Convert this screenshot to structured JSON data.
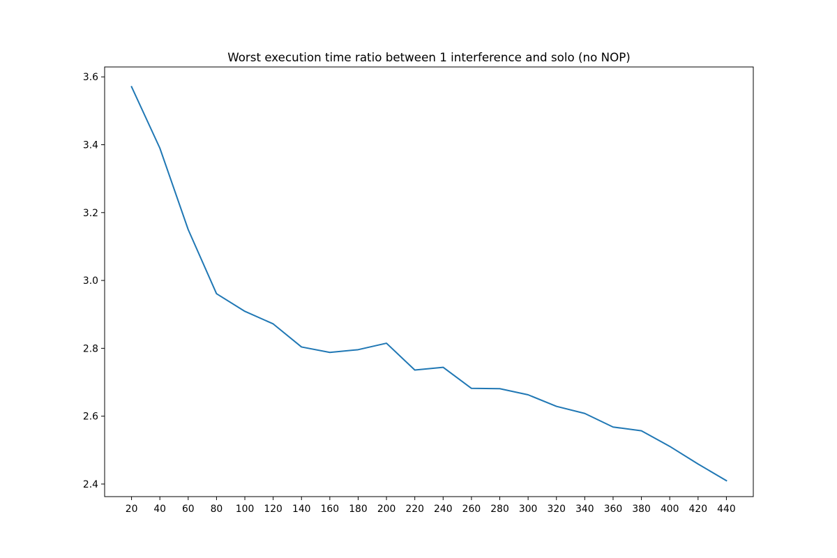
{
  "chart_data": {
    "type": "line",
    "title": "Worst execution time ratio between 1 interference and solo (no NOP)",
    "xlabel": "",
    "ylabel": "",
    "x": [
      20,
      40,
      60,
      80,
      100,
      120,
      140,
      160,
      180,
      200,
      220,
      240,
      260,
      280,
      300,
      320,
      340,
      360,
      380,
      400,
      420,
      440
    ],
    "x_tick_labels": [
      "20",
      "40",
      "60",
      "80",
      "100",
      "120",
      "140",
      "160",
      "180",
      "200",
      "220",
      "240",
      "260",
      "280",
      "300",
      "320",
      "340",
      "360",
      "380",
      "400",
      "420",
      "440"
    ],
    "series": [
      {
        "values": [
          3.571,
          3.39,
          3.15,
          2.961,
          2.909,
          2.872,
          2.804,
          2.788,
          2.796,
          2.815,
          2.736,
          2.744,
          2.682,
          2.681,
          2.663,
          2.629,
          2.608,
          2.568,
          2.557,
          2.511,
          2.459,
          2.41
        ],
        "color": "#1f77b4"
      }
    ],
    "y_ticks": [
      2.4,
      2.6,
      2.8,
      3.0,
      3.2,
      3.4,
      3.6
    ],
    "y_tick_labels": [
      "2.4",
      "2.6",
      "2.8",
      "3.0",
      "3.2",
      "3.4",
      "3.6"
    ],
    "xlim": [
      1,
      459
    ],
    "ylim": [
      2.3629,
      3.6292
    ],
    "grid": false,
    "legend": "none"
  }
}
